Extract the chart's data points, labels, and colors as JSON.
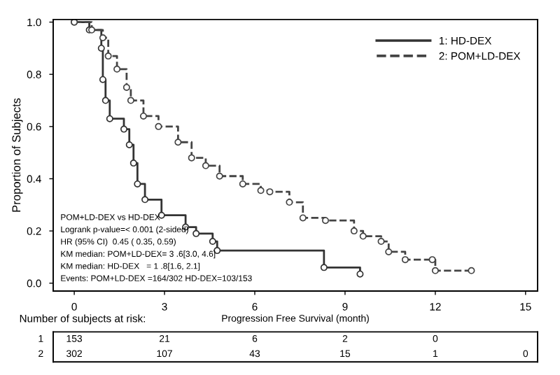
{
  "chart_data": [
    {
      "type": "step",
      "xlabel": "Progression Free Survival (month)",
      "ylabel": "Proportion of Subjects",
      "series": [
        {
          "name": "1: HD-DEX",
          "color": "#333333",
          "line_style": "solid",
          "x": [
            0,
            0.5,
            0.9,
            0.95,
            1.04,
            1.18,
            1.65,
            1.83,
            1.97,
            2.1,
            2.35,
            2.9,
            3.7,
            4.05,
            4.6,
            4.75,
            8.3,
            9.5
          ],
          "values": [
            1.0,
            0.97,
            0.9,
            0.78,
            0.7,
            0.63,
            0.59,
            0.53,
            0.46,
            0.38,
            0.32,
            0.26,
            0.215,
            0.19,
            0.16,
            0.125,
            0.06,
            0.035
          ]
        },
        {
          "name": "2: POM+LD-DEX",
          "color": "#444444",
          "line_style": "dashed",
          "x": [
            0,
            0.58,
            0.95,
            1.13,
            1.42,
            1.74,
            1.88,
            2.3,
            2.8,
            3.45,
            3.9,
            4.37,
            4.83,
            5.6,
            6.2,
            6.5,
            7.15,
            7.6,
            8.35,
            9.3,
            9.6,
            10.2,
            10.45,
            11.0,
            11.9,
            12.0,
            13.2
          ],
          "values": [
            1.0,
            0.97,
            0.94,
            0.87,
            0.82,
            0.75,
            0.7,
            0.64,
            0.6,
            0.54,
            0.48,
            0.45,
            0.41,
            0.38,
            0.355,
            0.35,
            0.31,
            0.25,
            0.24,
            0.2,
            0.18,
            0.16,
            0.12,
            0.09,
            0.09,
            0.048,
            0.048
          ]
        }
      ],
      "marker": "circle",
      "legend": "top right",
      "grid": false,
      "xlim": [
        -0.7,
        15.4
      ],
      "xticks": [
        0,
        3,
        6,
        9,
        12,
        15
      ],
      "ylim": [
        -0.03,
        1.01
      ],
      "yticks": [
        {
          "value": 0,
          "label": "0.0"
        },
        {
          "value": 0.2,
          "label": "0.2"
        },
        {
          "value": 0.4,
          "label": "0.4"
        },
        {
          "value": 0.6,
          "label": "0.6"
        },
        {
          "value": 0.8,
          "label": "0.8"
        },
        {
          "value": 1.0,
          "label": "1.0"
        }
      ],
      "annotations": [
        "POM+LD-DEX vs HD-DEX",
        "Logrank p-value=< 0.001 (2-sided)",
        "HR (95% CI)  0.45 ( 0.35, 0.59)",
        "KM median: POM+LD-DEX= 3 .6[3.0, 4.6]",
        "KM median: HD-DEX   = 1 .8[1.6, 2.1]",
        "Events: POM+LD-DEX =164/302 HD-DEX=103/153"
      ]
    },
    {
      "type": "other",
      "title": "Number of subjects at risk:",
      "y_categories": [
        "1",
        "2"
      ],
      "cell_labels": [
        [
          "153",
          "21",
          "6",
          "2",
          "0",
          null
        ],
        [
          "302",
          "107",
          "43",
          "15",
          "1",
          "0"
        ]
      ]
    }
  ]
}
